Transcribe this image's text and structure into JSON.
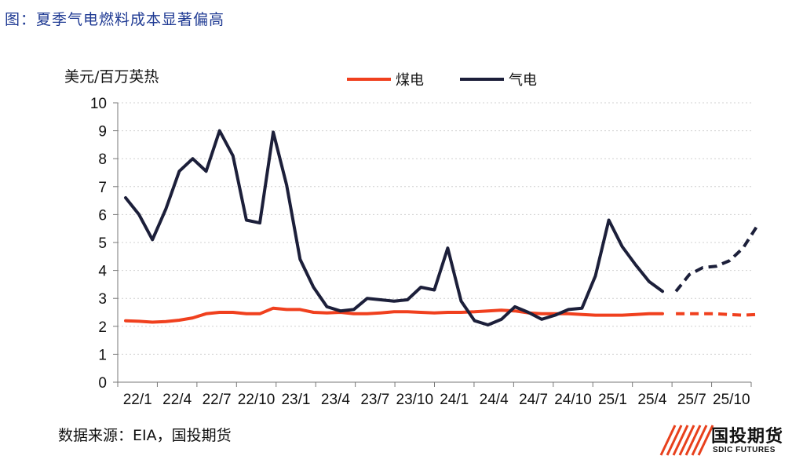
{
  "figure_title": "图：夏季气电燃料成本显著偏高",
  "source": "数据来源：EIA，国投期货",
  "logo": {
    "cn": "国投期货",
    "en": "SDIC FUTURES",
    "accent": "#e8401c"
  },
  "chart_data": {
    "type": "line",
    "ylabel": "美元/百万英热",
    "ylim": [
      0,
      10
    ],
    "yticks": [
      0,
      1,
      2,
      3,
      4,
      5,
      6,
      7,
      8,
      9,
      10
    ],
    "legend_position": "top",
    "xlabels": [
      "22/1",
      "22/4",
      "22/7",
      "22/10",
      "23/1",
      "23/4",
      "23/7",
      "23/10",
      "24/1",
      "24/4",
      "24/7",
      "24/10",
      "25/1",
      "25/4",
      "25/7",
      "25/10"
    ],
    "forecast_start": "25/6",
    "series": [
      {
        "name": "煤电",
        "color": "#f0401e",
        "values": [
          2.2,
          2.18,
          2.15,
          2.17,
          2.22,
          2.3,
          2.45,
          2.5,
          2.5,
          2.45,
          2.45,
          2.65,
          2.6,
          2.6,
          2.5,
          2.48,
          2.5,
          2.45,
          2.45,
          2.48,
          2.52,
          2.52,
          2.5,
          2.48,
          2.5,
          2.5,
          2.52,
          2.55,
          2.58,
          2.55,
          2.48,
          2.45,
          2.45,
          2.45,
          2.42,
          2.4,
          2.4,
          2.4,
          2.42,
          2.45,
          2.45,
          2.45,
          2.45,
          2.45,
          2.45,
          2.42,
          2.4,
          2.42
        ]
      },
      {
        "name": "气电",
        "color": "#1c1f3a",
        "values": [
          6.6,
          6.0,
          5.1,
          6.2,
          7.55,
          8.0,
          7.55,
          9.0,
          8.1,
          5.8,
          5.7,
          8.95,
          7.05,
          4.4,
          3.4,
          2.7,
          2.55,
          2.6,
          3.0,
          2.95,
          2.9,
          2.95,
          3.4,
          3.3,
          4.8,
          2.9,
          2.2,
          2.05,
          2.25,
          2.7,
          2.5,
          2.25,
          2.4,
          2.6,
          2.65,
          3.8,
          5.8,
          4.85,
          4.2,
          3.6,
          3.25,
          3.25,
          3.85,
          4.1,
          4.15,
          4.35,
          4.8,
          5.55
        ]
      }
    ]
  }
}
